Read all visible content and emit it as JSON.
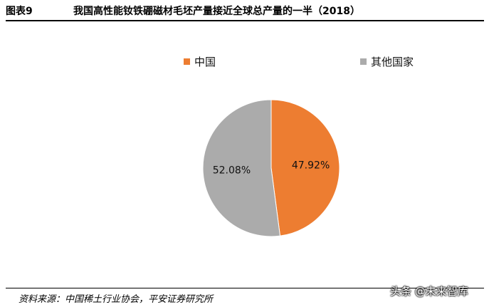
{
  "header": {
    "figure_number": "图表9",
    "title": "我国高性能钕铁硼磁材毛坯产量接近全球总产量的一半（2018）"
  },
  "chart_data": {
    "type": "pie",
    "slices": [
      {
        "label": "中国",
        "value": 47.92,
        "display": "47.92%",
        "color": "#ED7D31"
      },
      {
        "label": "其他国家",
        "value": 52.08,
        "display": "52.08%",
        "color": "#ABABAB"
      }
    ],
    "legend_position": "top"
  },
  "footer": {
    "source": "资料来源：中国稀土行业协会，平安证券研究所"
  },
  "watermark": "头条 @未来智库"
}
